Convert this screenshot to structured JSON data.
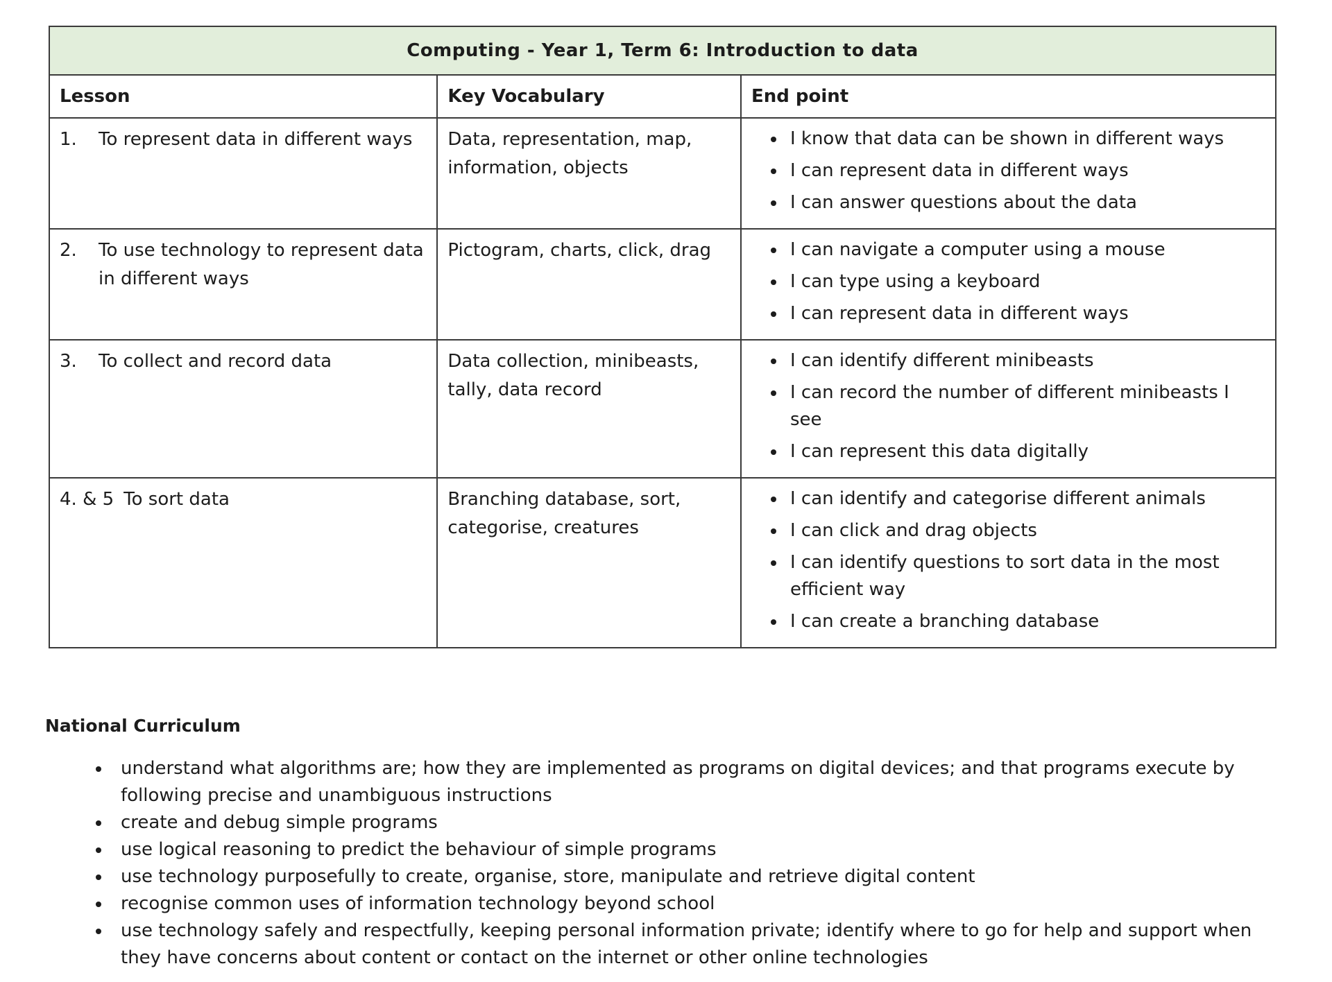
{
  "document": {
    "title": "Computing - Year 1, Term 6: Introduction to data",
    "colors": {
      "title_bg": "#e2eedb",
      "border": "#3a3a3a",
      "text": "#1c1c1c"
    },
    "table": {
      "headers": [
        "Lesson",
        "Key Vocabulary",
        "End point"
      ],
      "rows": [
        {
          "num": "1.",
          "lesson": "To represent data in different ways",
          "vocabulary": "Data, representation, map, information, objects",
          "end_points": [
            "I know that data can be shown in different ways",
            "I can represent data in different ways",
            "I can answer questions about the data"
          ]
        },
        {
          "num": "2.",
          "lesson": "To use technology to represent data in different ways",
          "vocabulary": "Pictogram, charts, click, drag",
          "end_points": [
            "I can navigate a computer using a mouse",
            "I can type using a keyboard",
            "I can represent data in different ways"
          ]
        },
        {
          "num": "3.",
          "lesson": "To collect and record data",
          "vocabulary": "Data collection, minibeasts, tally, data record",
          "end_points": [
            "I can identify different minibeasts",
            "I can record the number of different minibeasts I see",
            "I can represent this data digitally"
          ]
        },
        {
          "num": "4. & 5",
          "lesson": "To sort data",
          "vocabulary": "Branching database, sort, categorise, creatures",
          "end_points": [
            "I can identify and categorise different animals",
            "I can click and drag objects",
            "I can identify questions to sort data in the most efficient way",
            "I can create a branching database"
          ]
        }
      ]
    },
    "national_curriculum": {
      "heading": "National Curriculum",
      "bullets": [
        "understand what algorithms are; how they are implemented as programs on digital devices; and that programs execute by following precise and unambiguous instructions",
        "create and debug simple programs",
        "use logical reasoning to predict the behaviour of simple programs",
        "use technology purposefully to create, organise, store, manipulate and retrieve digital content",
        "recognise common uses of information technology beyond school",
        "use technology safely and respectfully, keeping personal information private; identify where to go for help and support when they have concerns about content or contact on the internet or other online technologies"
      ]
    }
  }
}
